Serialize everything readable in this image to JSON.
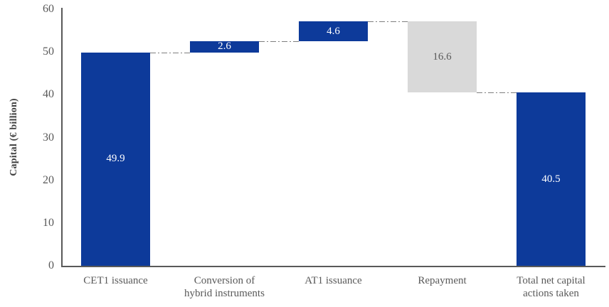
{
  "chart_data": {
    "type": "bar",
    "subtype": "waterfall",
    "title": "",
    "xlabel": "",
    "ylabel": "Capital (€ billion)",
    "ylim": [
      0,
      60
    ],
    "yticks": [
      0,
      10,
      20,
      30,
      40,
      50,
      60
    ],
    "grid": false,
    "legend": null,
    "categories": [
      "CET1 issuance",
      "Conversion of hybrid instruments",
      "AT1 issuance",
      "Repayment",
      "Total net capital actions taken"
    ],
    "bars": [
      {
        "category": "CET1 issuance",
        "category_lines": [
          "CET1 issuance"
        ],
        "value": 49.9,
        "display_label": "49.9",
        "start": 0,
        "end": 49.9,
        "role": "increase",
        "color": "#0d3a9a",
        "text_color": "#ffffff"
      },
      {
        "category": "Conversion of hybrid instruments",
        "category_lines": [
          "Conversion of",
          "hybrid instruments"
        ],
        "value": 2.6,
        "display_label": "2.6",
        "start": 49.9,
        "end": 52.5,
        "role": "increase",
        "color": "#0d3a9a",
        "text_color": "#ffffff"
      },
      {
        "category": "AT1 issuance",
        "category_lines": [
          "AT1 issuance"
        ],
        "value": 4.6,
        "display_label": "4.6",
        "start": 52.5,
        "end": 57.1,
        "role": "increase",
        "color": "#0d3a9a",
        "text_color": "#ffffff"
      },
      {
        "category": "Repayment",
        "category_lines": [
          "Repayment"
        ],
        "value": -16.6,
        "display_label": "16.6",
        "start": 57.1,
        "end": 40.5,
        "role": "decrease",
        "color": "#d9d9d9",
        "text_color": "#595959"
      },
      {
        "category": "Total net capital actions taken",
        "category_lines": [
          "Total net capital",
          "actions taken"
        ],
        "value": 40.5,
        "display_label": "40.5",
        "start": 0,
        "end": 40.5,
        "role": "total",
        "color": "#0d3a9a",
        "text_color": "#ffffff"
      }
    ],
    "connectors": [
      {
        "level": 49.9,
        "from_bar": 0,
        "to_bar": 1
      },
      {
        "level": 52.5,
        "from_bar": 1,
        "to_bar": 2
      },
      {
        "level": 57.1,
        "from_bar": 2,
        "to_bar": 3
      },
      {
        "level": 40.5,
        "from_bar": 3,
        "to_bar": 4
      }
    ],
    "colors": {
      "increase": "#0d3a9a",
      "decrease": "#d9d9d9",
      "total": "#0d3a9a",
      "axis": "#595959",
      "tick_text": "#595959",
      "category_text": "#595959",
      "ylabel_text": "#404040",
      "connector": "#7f7f7f"
    }
  }
}
